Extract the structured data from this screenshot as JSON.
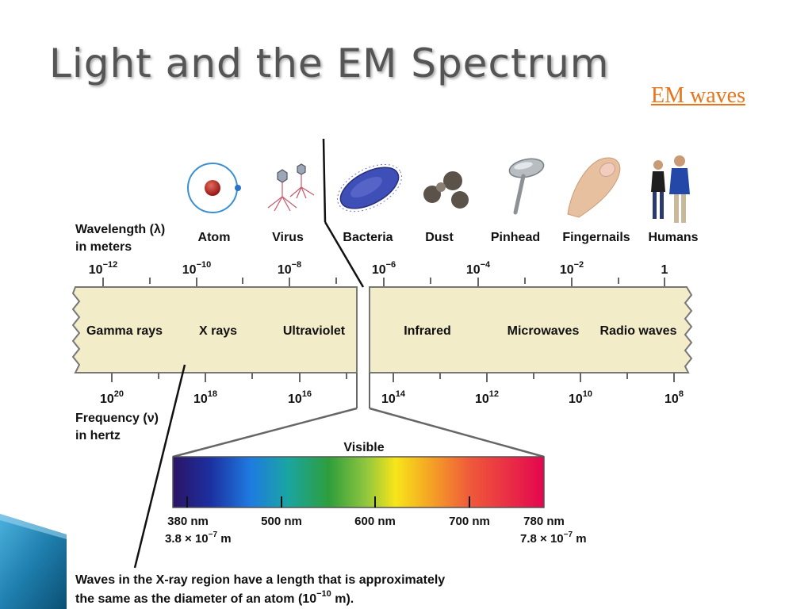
{
  "slide": {
    "title": "Light and the EM Spectrum",
    "link_label": "EM waves"
  },
  "wavelength_axis": {
    "label_line1": "Wavelength (λ)",
    "label_line2": "in meters",
    "ticks": [
      {
        "base": "10",
        "exp": "−12"
      },
      {
        "base": "10",
        "exp": "−10"
      },
      {
        "base": "10",
        "exp": "−8"
      },
      {
        "base": "10",
        "exp": "−6"
      },
      {
        "base": "10",
        "exp": "−4"
      },
      {
        "base": "10",
        "exp": "−2"
      },
      {
        "base": "1",
        "exp": ""
      }
    ]
  },
  "objects": [
    {
      "label": "Atom",
      "icon": "atom-icon"
    },
    {
      "label": "Virus",
      "icon": "virus-icon"
    },
    {
      "label": "Bacteria",
      "icon": "bacteria-icon"
    },
    {
      "label": "Dust",
      "icon": "dust-icon"
    },
    {
      "label": "Pinhead",
      "icon": "pinhead-icon"
    },
    {
      "label": "Fingernails",
      "icon": "fingernail-icon"
    },
    {
      "label": "Humans",
      "icon": "humans-icon"
    }
  ],
  "bands": [
    "Gamma rays",
    "X rays",
    "Ultraviolet",
    "Infrared",
    "Microwaves",
    "Radio waves"
  ],
  "frequency_axis": {
    "label_line1": "Frequency (ν)",
    "label_line2": "in hertz",
    "ticks": [
      {
        "base": "10",
        "exp": "20"
      },
      {
        "base": "10",
        "exp": "18"
      },
      {
        "base": "10",
        "exp": "16"
      },
      {
        "base": "10",
        "exp": "14"
      },
      {
        "base": "10",
        "exp": "12"
      },
      {
        "base": "10",
        "exp": "10"
      },
      {
        "base": "10",
        "exp": "8"
      }
    ]
  },
  "visible": {
    "title": "Visible",
    "ticks": [
      "380 nm",
      "500 nm",
      "600 nm",
      "700 nm",
      "780 nm"
    ],
    "min_m": {
      "prefix": "3.8 × 10",
      "exp": "−7",
      "unit": " m"
    },
    "max_m": {
      "prefix": "7.8 × 10",
      "exp": "−7",
      "unit": " m"
    }
  },
  "caption": {
    "line1": "Waves in the X-ray region have a length that is approximately",
    "line2_prefix": "the same as the diameter of an atom (10",
    "line2_exp": "−10",
    "line2_suffix": " m)."
  },
  "colors": {
    "band_fill": "#f3ecc9",
    "band_stroke": "#777777",
    "title": "#555555",
    "link": "#e8741c",
    "corner_dark": "#0b4f73",
    "corner_light": "#3fa9d6"
  }
}
